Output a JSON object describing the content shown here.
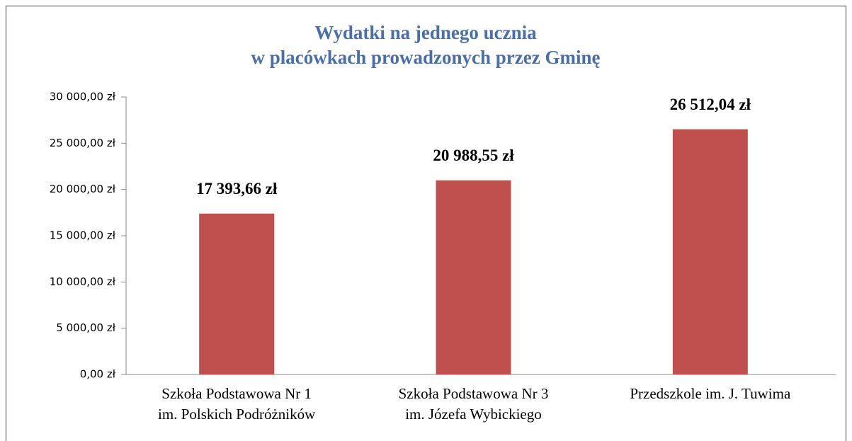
{
  "chart_data": {
    "type": "bar",
    "title": [
      "Wydatki na jednego ucznia",
      "w placówkach prowadzonych przez Gminę"
    ],
    "categories": [
      [
        "Szkoła Podstawowa Nr 1",
        "im. Polskich Podróżników"
      ],
      [
        "Szkoła Podstawowa Nr 3",
        "im. Józefa Wybickiego"
      ],
      [
        "Przedszkole im. J. Tuwima"
      ]
    ],
    "values": [
      17393.66,
      20988.55,
      26512.04
    ],
    "value_labels": [
      "17 393,66 zł",
      "20 988,55 zł",
      "26 512,04 zł"
    ],
    "color": "#c0504d",
    "ylim": [
      0,
      30000
    ],
    "yticks": [
      {
        "value": 0,
        "label": "0,00 zł"
      },
      {
        "value": 5000,
        "label": "5 000,00 zł"
      },
      {
        "value": 10000,
        "label": "10 000,00 zł"
      },
      {
        "value": 15000,
        "label": "15 000,00 zł"
      },
      {
        "value": 20000,
        "label": "20 000,00 zł"
      },
      {
        "value": 25000,
        "label": "25 000,00 zł"
      },
      {
        "value": 30000,
        "label": "30 000,00 zł"
      }
    ],
    "grid": false
  }
}
